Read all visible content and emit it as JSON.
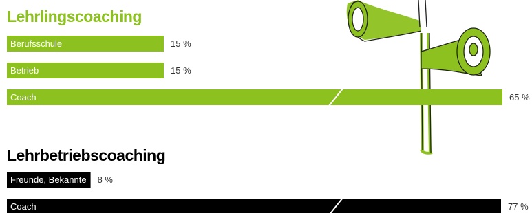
{
  "chart_data": [
    {
      "type": "bar",
      "title": "Lehrlingscoaching",
      "color": "#8dc11f",
      "categories": [
        "Berufsschule",
        "Betrieb",
        "Coach"
      ],
      "values": [
        15,
        15,
        65
      ],
      "value_labels": [
        "15 %",
        "15 %",
        "65 %"
      ]
    },
    {
      "type": "bar",
      "title": "Lehrbetriebscoaching",
      "color": "#000000",
      "categories": [
        "Freunde, Bekannte",
        "Coach"
      ],
      "values": [
        8,
        77
      ],
      "value_labels": [
        "8 %",
        "77 %"
      ]
    }
  ]
}
